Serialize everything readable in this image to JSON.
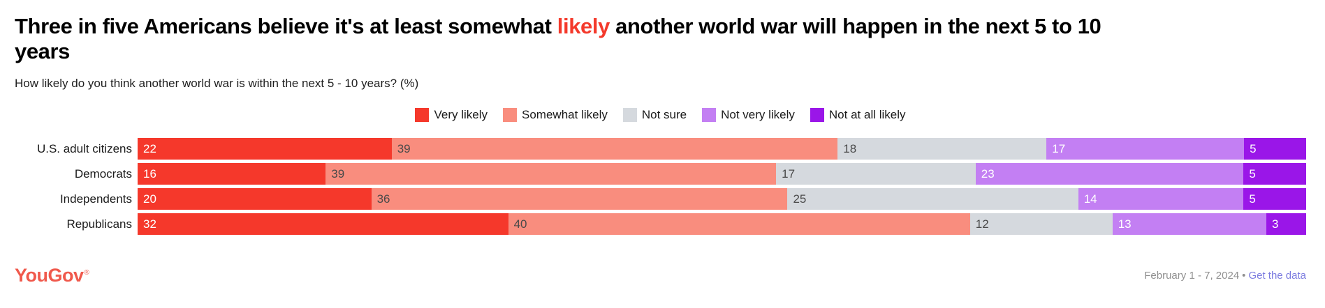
{
  "title": {
    "pre": "Three in five Americans believe it's at least somewhat ",
    "highlight": "likely",
    "post": " another world war will happen in the next 5 to 10 years",
    "highlight_color": "#f4392b"
  },
  "subtitle": "How likely do you think another world war is within the next 5 - 10 years? (%)",
  "legend": [
    {
      "label": "Very likely",
      "color": "#f5382b",
      "text_color": "#ffffff"
    },
    {
      "label": "Somewhat likely",
      "color": "#f98d7e",
      "text_color": "#4a4a4a"
    },
    {
      "label": "Not sure",
      "color": "#d5d9de",
      "text_color": "#4a4a4a"
    },
    {
      "label": "Not very likely",
      "color": "#c37ff3",
      "text_color": "#ffffff"
    },
    {
      "label": "Not at all likely",
      "color": "#9a16e8",
      "text_color": "#ffffff"
    }
  ],
  "chart_data": {
    "type": "bar",
    "orientation": "horizontal_stacked",
    "unit": "percent",
    "title": "Three in five Americans believe it's at least somewhat likely another world war will happen in the next 5 to 10 years",
    "subtitle": "How likely do you think another world war is within the next 5 - 10 years? (%)",
    "categories": [
      "U.S. adult citizens",
      "Democrats",
      "Independents",
      "Republicans"
    ],
    "series": [
      {
        "name": "Very likely",
        "values": [
          22,
          16,
          20,
          32
        ]
      },
      {
        "name": "Somewhat likely",
        "values": [
          39,
          39,
          36,
          40
        ]
      },
      {
        "name": "Not sure",
        "values": [
          18,
          17,
          25,
          12
        ]
      },
      {
        "name": "Not very likely",
        "values": [
          17,
          23,
          14,
          13
        ]
      },
      {
        "name": "Not at all likely",
        "values": [
          5,
          5,
          5,
          3
        ]
      }
    ],
    "xlabel": "",
    "ylabel": "",
    "xlim": [
      0,
      100
    ],
    "grid": false,
    "legend_position": "top-center",
    "data_labels": "inside-left"
  },
  "footer": {
    "brand": "YouGov",
    "registered": "®",
    "date": "February 1 - 7, 2024",
    "separator": "•",
    "link_label": "Get the data"
  }
}
